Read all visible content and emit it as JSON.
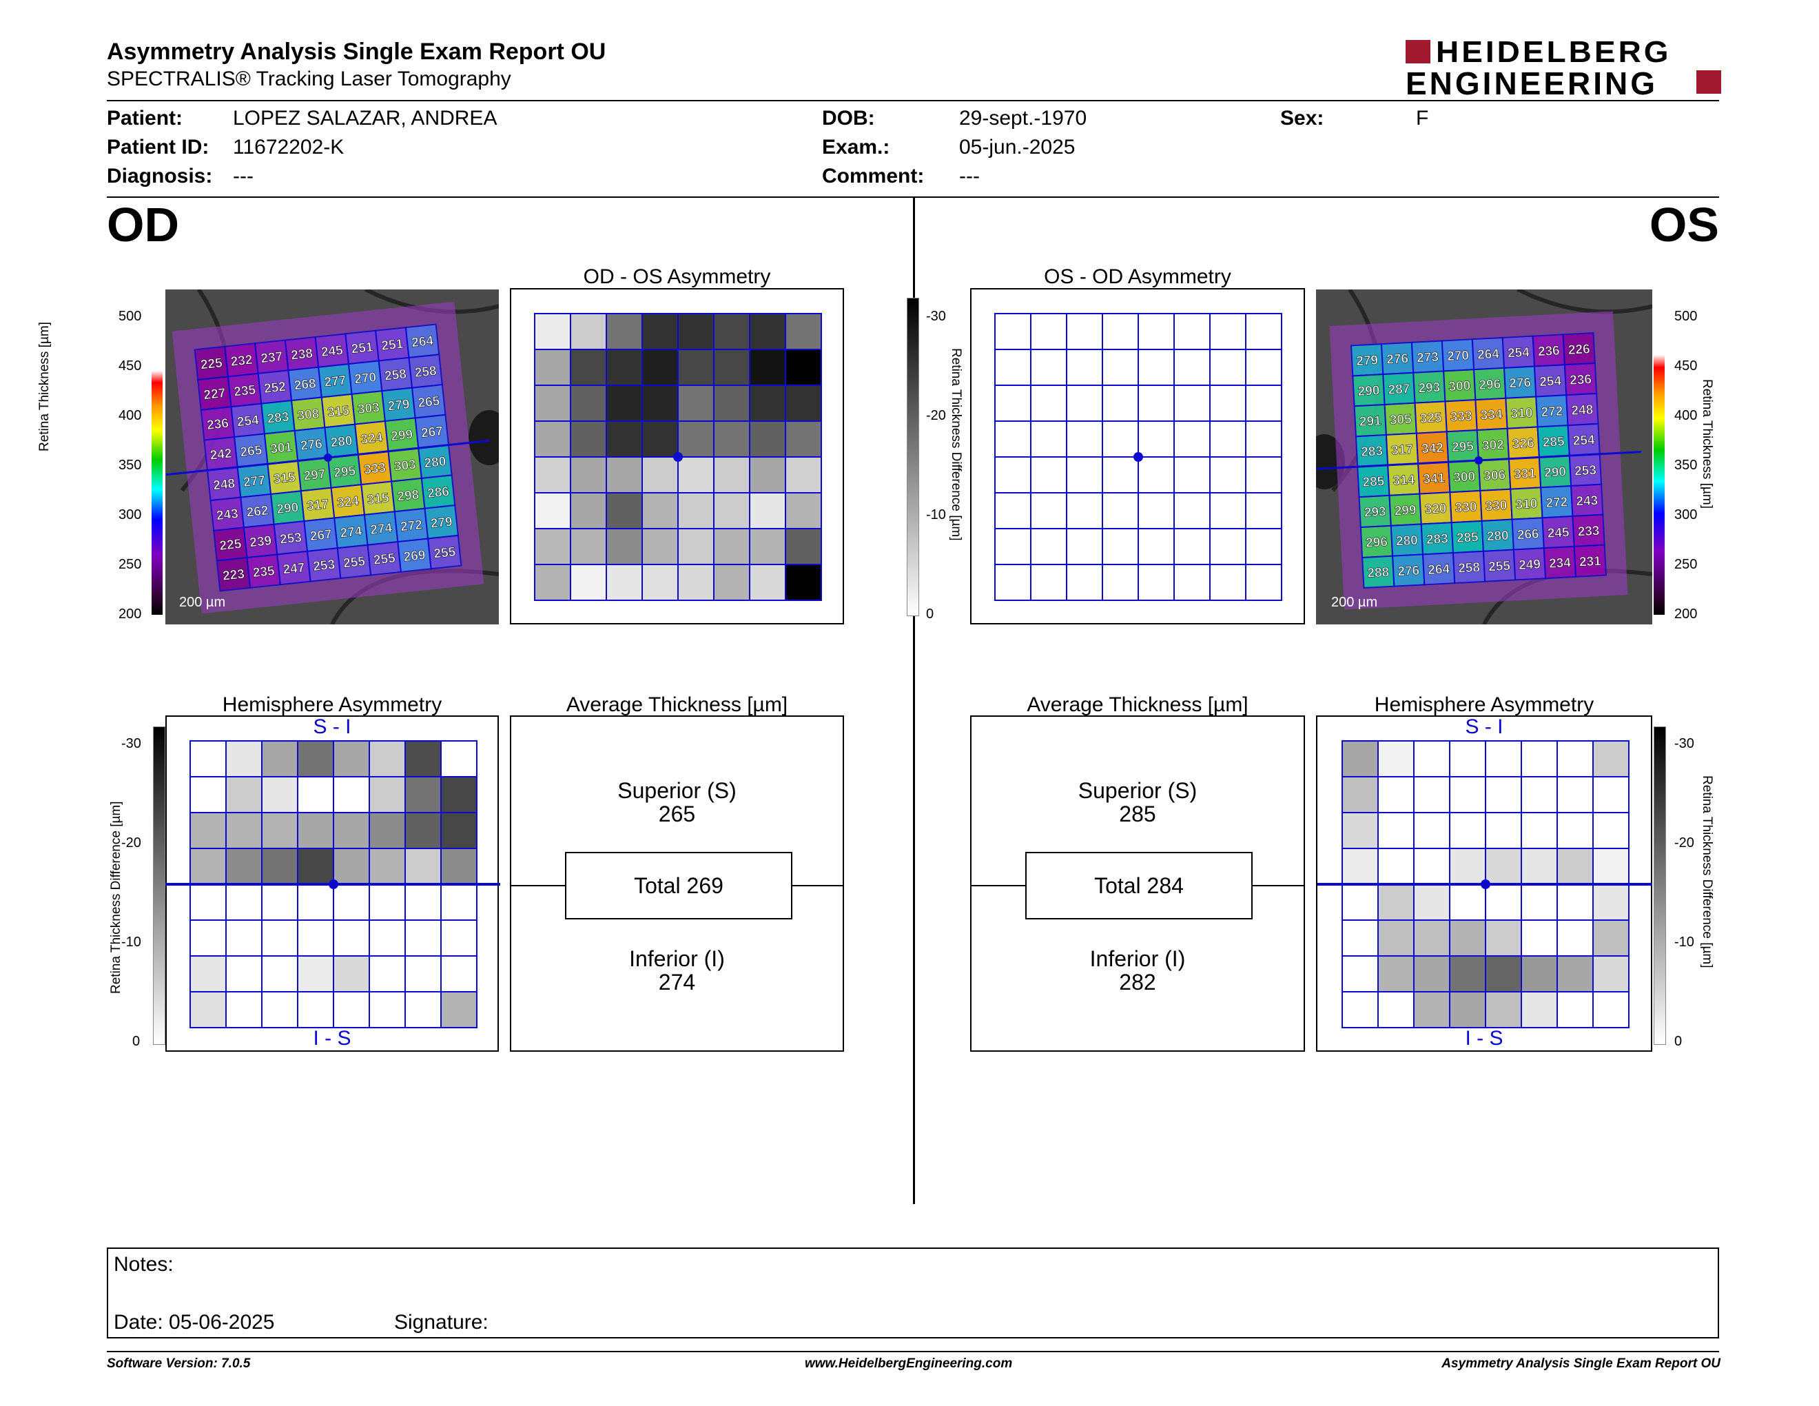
{
  "header": {
    "title": "Asymmetry Analysis Single Exam Report OU",
    "subtitle": "SPECTRALIS® Tracking Laser Tomography",
    "logo_line1": "HEIDELBERG",
    "logo_line2": "ENGINEERING"
  },
  "patient": {
    "patient_label": "Patient:",
    "patient_value": "LOPEZ SALAZAR, ANDREA",
    "id_label": "Patient ID:",
    "id_value": "11672202-K",
    "diagnosis_label": "Diagnosis:",
    "diagnosis_value": "---",
    "dob_label": "DOB:",
    "dob_value": "29-sept.-1970",
    "exam_label": "Exam.:",
    "exam_value": "05-jun.-2025",
    "comment_label": "Comment:",
    "comment_value": "---",
    "sex_label": "Sex:",
    "sex_value": "F"
  },
  "od": {
    "eye_label": "OD",
    "asym_title": "OD - OS Asymmetry",
    "hemi_title": "Hemisphere Asymmetry",
    "avg_title": "Average Thickness [µm]",
    "superior_label": "Superior (S)",
    "superior_value": "265",
    "total_label": "Total 269",
    "inferior_label": "Inferior (I)",
    "inferior_value": "274",
    "scale_bar": "200 µm",
    "hemi_top": "S - I",
    "hemi_bottom": "I - S",
    "thickness_grid": [
      [
        225,
        232,
        237,
        238,
        245,
        251,
        251,
        264
      ],
      [
        227,
        235,
        252,
        268,
        277,
        270,
        258,
        258
      ],
      [
        236,
        254,
        283,
        308,
        315,
        303,
        279,
        265
      ],
      [
        242,
        265,
        301,
        276,
        280,
        324,
        299,
        267
      ],
      [
        248,
        277,
        315,
        297,
        295,
        333,
        303,
        280
      ],
      [
        243,
        262,
        290,
        317,
        324,
        315,
        298,
        286
      ],
      [
        225,
        239,
        253,
        267,
        274,
        274,
        272,
        279
      ],
      [
        223,
        235,
        247,
        253,
        255,
        255,
        269,
        255
      ]
    ],
    "asym_gray": [
      [
        0.08,
        0.2,
        0.55,
        0.8,
        0.8,
        0.72,
        0.8,
        0.55
      ],
      [
        0.35,
        0.72,
        0.8,
        0.88,
        0.72,
        0.72,
        0.92,
        1.0
      ],
      [
        0.35,
        0.62,
        0.85,
        0.85,
        0.55,
        0.62,
        0.8,
        0.8
      ],
      [
        0.35,
        0.62,
        0.8,
        0.8,
        0.55,
        0.55,
        0.62,
        0.55
      ],
      [
        0.18,
        0.35,
        0.35,
        0.2,
        0.15,
        0.2,
        0.35,
        0.18
      ],
      [
        0.05,
        0.35,
        0.62,
        0.3,
        0.2,
        0.2,
        0.1,
        0.3
      ],
      [
        0.28,
        0.3,
        0.45,
        0.3,
        0.2,
        0.3,
        0.3,
        0.62
      ],
      [
        0.3,
        0.05,
        0.1,
        0.12,
        0.15,
        0.3,
        0.15,
        1.0
      ]
    ],
    "hemi_gray": [
      [
        0.0,
        0.1,
        0.35,
        0.55,
        0.35,
        0.2,
        0.7,
        0.0
      ],
      [
        0.0,
        0.2,
        0.1,
        0.0,
        0.0,
        0.2,
        0.55,
        0.72
      ],
      [
        0.3,
        0.3,
        0.3,
        0.35,
        0.35,
        0.45,
        0.62,
        0.72
      ],
      [
        0.3,
        0.45,
        0.55,
        0.72,
        0.35,
        0.3,
        0.2,
        0.45
      ],
      [
        0,
        0,
        0,
        0,
        0,
        0,
        0,
        0
      ],
      [
        0,
        0,
        0,
        0,
        0,
        0,
        0,
        0
      ],
      [
        0.1,
        0,
        0,
        0.08,
        0.15,
        0,
        0,
        0
      ],
      [
        0.12,
        0,
        0,
        0,
        0,
        0,
        0,
        0.3
      ]
    ]
  },
  "os": {
    "eye_label": "OS",
    "asym_title": "OS - OD Asymmetry",
    "hemi_title": "Hemisphere Asymmetry",
    "avg_title": "Average Thickness [µm]",
    "superior_label": "Superior (S)",
    "superior_value": "285",
    "total_label": "Total 284",
    "inferior_label": "Inferior (I)",
    "inferior_value": "282",
    "scale_bar": "200 µm",
    "hemi_top": "S - I",
    "hemi_bottom": "I - S",
    "thickness_grid": [
      [
        279,
        276,
        273,
        270,
        264,
        254,
        236,
        226
      ],
      [
        290,
        287,
        293,
        300,
        296,
        276,
        254,
        236
      ],
      [
        291,
        305,
        325,
        333,
        334,
        310,
        272,
        248
      ],
      [
        283,
        317,
        342,
        295,
        302,
        326,
        285,
        254
      ],
      [
        285,
        314,
        341,
        300,
        306,
        331,
        290,
        253
      ],
      [
        293,
        299,
        320,
        330,
        330,
        310,
        272,
        243
      ],
      [
        296,
        280,
        283,
        285,
        280,
        266,
        245,
        233
      ],
      [
        288,
        276,
        264,
        258,
        255,
        249,
        234,
        231
      ]
    ],
    "hemi_gray": [
      [
        0.35,
        0.05,
        0,
        0,
        0,
        0,
        0,
        0.2
      ],
      [
        0.25,
        0,
        0,
        0,
        0,
        0,
        0,
        0
      ],
      [
        0.15,
        0,
        0,
        0,
        0,
        0,
        0,
        0
      ],
      [
        0.08,
        0,
        0,
        0.1,
        0.15,
        0.1,
        0.2,
        0.05
      ],
      [
        0,
        0.2,
        0.1,
        0,
        0,
        0,
        0,
        0.1
      ],
      [
        0,
        0.25,
        0.25,
        0.3,
        0.2,
        0,
        0,
        0.25
      ],
      [
        0,
        0.3,
        0.35,
        0.55,
        0.6,
        0.4,
        0.35,
        0.15
      ],
      [
        0,
        0,
        0.3,
        0.35,
        0.25,
        0.1,
        0,
        0
      ]
    ]
  },
  "colorbar": {
    "thickness_label": "Retina Thickness [µm]",
    "thickness_ticks": [
      "500",
      "450",
      "400",
      "350",
      "300",
      "250",
      "200"
    ],
    "diff_label": "Retina Thickness Difference [µm]",
    "diff_ticks": [
      "-30",
      "-20",
      "-10",
      "0"
    ]
  },
  "notes": {
    "notes_label": "Notes:",
    "date_label": "Date: 05-06-2025",
    "signature_label": "Signature:"
  },
  "footer": {
    "version": "Software Version: 7.0.5",
    "url": "www.HeidelbergEngineering.com",
    "report": "Asymmetry Analysis Single Exam Report OU"
  },
  "colors": {
    "grid_blue": "#0a0ad0",
    "logo_red": "#a0192f"
  }
}
